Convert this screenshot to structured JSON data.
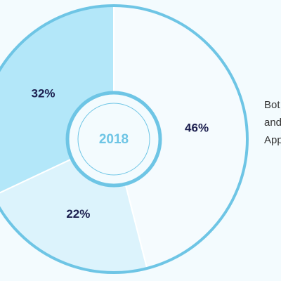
{
  "chart_data": {
    "type": "pie",
    "center_label": "2018",
    "categories": [
      null,
      null,
      null
    ],
    "values": [
      46,
      22,
      32
    ],
    "value_labels": [
      "46%",
      "22%",
      "32%"
    ],
    "colors": [
      "#f5fbfe",
      "#dcf3fc",
      "#b3e7f9"
    ],
    "ring_color": "#6ec5e5",
    "side_text": [
      "Bot",
      "and",
      "App"
    ]
  }
}
